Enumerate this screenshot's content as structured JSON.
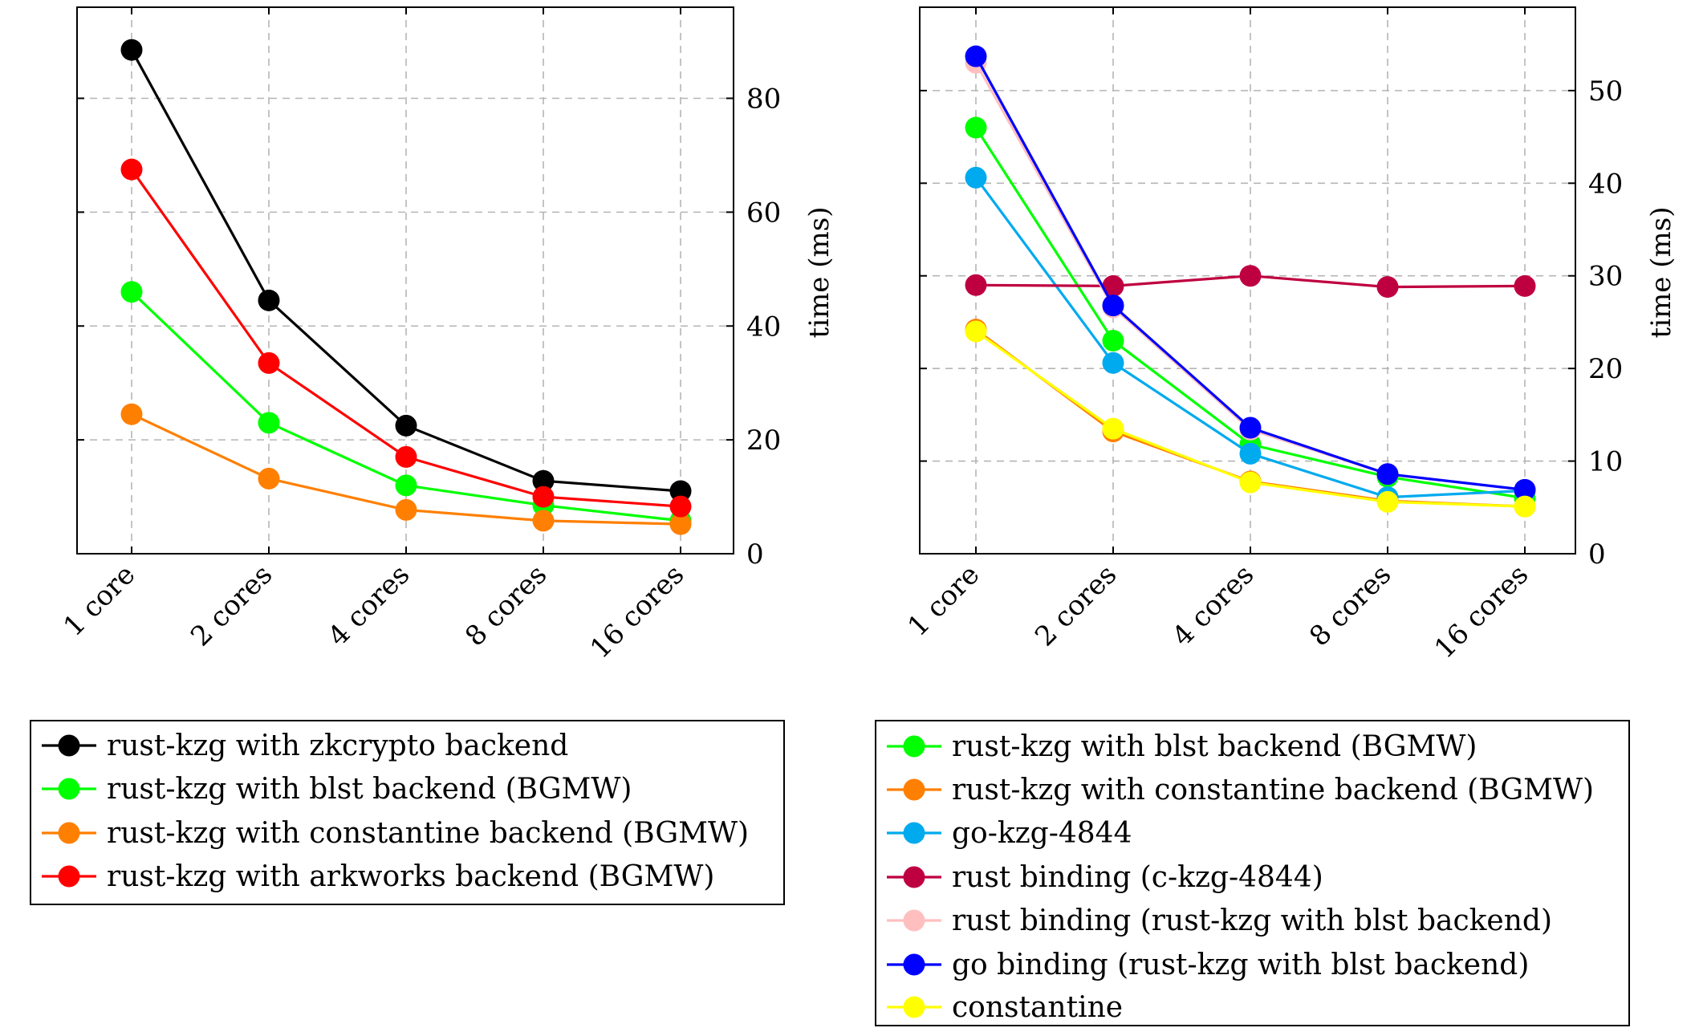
{
  "chart_data": [
    {
      "type": "line",
      "categories": [
        "1 core",
        "2 cores",
        "4 cores",
        "8 cores",
        "16 cores"
      ],
      "ylabel": "time (ms)",
      "ylim": [
        0,
        96
      ],
      "yticks": [
        0,
        20,
        40,
        60,
        80
      ],
      "grid": true,
      "legend_position": "below",
      "series": [
        {
          "name": "rust-kzg with zkcrypto backend",
          "color": "#000000",
          "values": [
            88.5,
            44.5,
            22.5,
            12.8,
            11.0
          ]
        },
        {
          "name": "rust-kzg with blst backend (BGMW)",
          "color": "#00ff00",
          "values": [
            46.0,
            23.0,
            12.0,
            8.5,
            5.8
          ]
        },
        {
          "name": "rust-kzg with constantine backend (BGMW)",
          "color": "#ff7f00",
          "values": [
            24.5,
            13.2,
            7.7,
            5.8,
            5.2
          ]
        },
        {
          "name": "rust-kzg with arkworks backend (BGMW)",
          "color": "#ff0000",
          "values": [
            67.5,
            33.5,
            17.0,
            10.0,
            8.3
          ]
        }
      ]
    },
    {
      "type": "line",
      "categories": [
        "1 core",
        "2 cores",
        "4 cores",
        "8 cores",
        "16 cores"
      ],
      "ylabel": "time (ms)",
      "ylim": [
        0,
        59
      ],
      "yticks": [
        0,
        10,
        20,
        30,
        40,
        50
      ],
      "grid": true,
      "legend_position": "below",
      "series": [
        {
          "name": "rust-kzg with blst backend (BGMW)",
          "color": "#00ff00",
          "values": [
            46.0,
            23.0,
            11.8,
            8.3,
            6.0
          ]
        },
        {
          "name": "rust-kzg with constantine backend (BGMW)",
          "color": "#ff7f00",
          "values": [
            24.2,
            13.2,
            7.8,
            5.7,
            5.1
          ]
        },
        {
          "name": "go-kzg-4844",
          "color": "#00aaee",
          "values": [
            40.6,
            20.6,
            10.8,
            6.1,
            6.8
          ]
        },
        {
          "name": "rust binding (c-kzg-4844)",
          "color": "#bf0040",
          "values": [
            29.0,
            28.9,
            30.0,
            28.8,
            28.9
          ]
        },
        {
          "name": "rust binding (rust-kzg with blst backend)",
          "color": "#ffbfbf",
          "values": [
            53.0,
            26.6,
            13.4,
            8.6,
            6.9
          ]
        },
        {
          "name": "go binding (rust-kzg with blst backend)",
          "color": "#0000ff",
          "values": [
            53.7,
            26.8,
            13.6,
            8.6,
            6.9
          ]
        },
        {
          "name": "constantine",
          "color": "#ffff00",
          "values": [
            24.0,
            13.5,
            7.7,
            5.6,
            5.1
          ]
        }
      ]
    }
  ]
}
